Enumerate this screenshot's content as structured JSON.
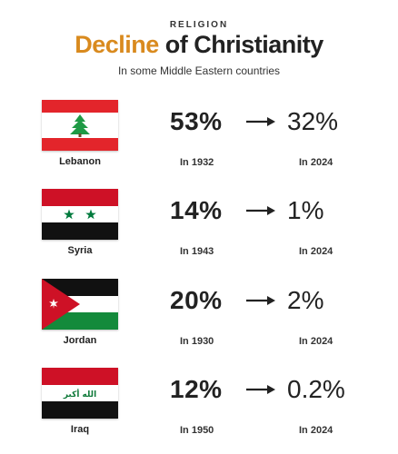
{
  "header": {
    "kicker": "RELIGION",
    "title_accent": "Decline",
    "title_rest": " of Christianity",
    "subtitle": "In some Middle Eastern countries"
  },
  "colors": {
    "accent": "#d98a1e",
    "lebanon_red": "#e3252b",
    "cedar_green": "#1f9a45",
    "syria_red": "#ce1126",
    "syria_black": "#111111",
    "syria_star": "#007a3d",
    "jordan_red": "#ce1126",
    "jordan_green": "#138a3b",
    "iraq_red": "#ce1126",
    "iraq_green": "#107a3a"
  },
  "rows": [
    {
      "country": "Lebanon",
      "from_pct": "53%",
      "from_year": "In 1932",
      "to_pct": "32%",
      "to_year": "In 2024",
      "flag_icon": "lebanon-flag-icon"
    },
    {
      "country": "Syria",
      "from_pct": "14%",
      "from_year": "In 1943",
      "to_pct": "1%",
      "to_year": "In 2024",
      "flag_icon": "syria-flag-icon"
    },
    {
      "country": "Jordan",
      "from_pct": "20%",
      "from_year": "In 1930",
      "to_pct": "2%",
      "to_year": "In 2024",
      "flag_icon": "jordan-flag-icon"
    },
    {
      "country": "Iraq",
      "from_pct": "12%",
      "from_year": "In 1950",
      "to_pct": "0.2%",
      "to_year": "In 2024",
      "flag_icon": "iraq-flag-icon"
    }
  ],
  "iraq_flag_text": "الله أكبر"
}
